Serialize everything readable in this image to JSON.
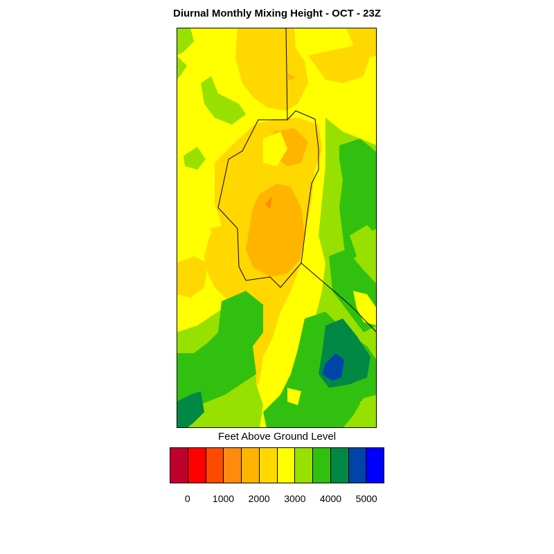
{
  "title": "Diurnal Monthly Mixing Height - OCT - 23Z",
  "colorbar": {
    "title": "Feet Above Ground Level",
    "colors": [
      "#c0002c",
      "#ff0000",
      "#ff4a00",
      "#ff8a10",
      "#ffb400",
      "#ffd800",
      "#ffff00",
      "#97e000",
      "#32c010",
      "#008844",
      "#0044aa",
      "#0000ff"
    ],
    "ticks": [
      "0",
      "1000",
      "2000",
      "3000",
      "4000",
      "5000"
    ]
  },
  "chart_data": {
    "type": "heatmap",
    "title": "Diurnal Monthly Mixing Height - OCT - 23Z",
    "legend_title": "Feet Above Ground Level",
    "levels": [
      0,
      1000,
      2000,
      3000,
      4000,
      5000
    ],
    "legend_placement": "bottom"
  }
}
